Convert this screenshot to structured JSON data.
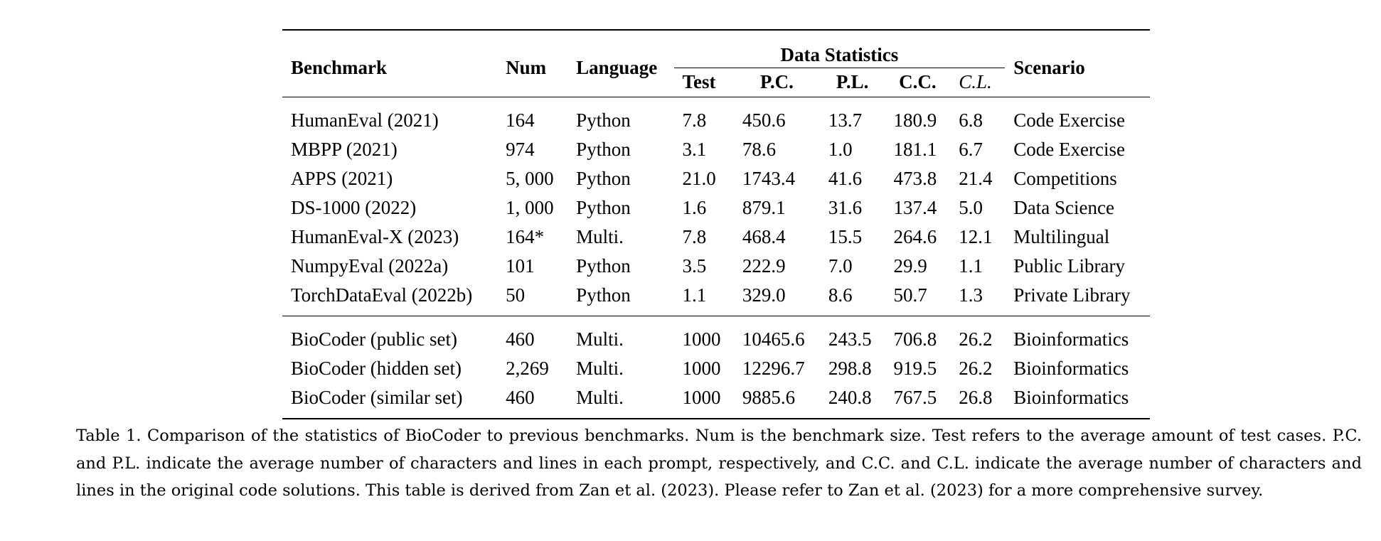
{
  "table": {
    "headers": {
      "benchmark": "Benchmark",
      "num": "Num",
      "language": "Language",
      "data_statistics": "Data Statistics",
      "scenario": "Scenario",
      "sub": {
        "test": "Test",
        "pc": "P.C.",
        "pl": "P.L.",
        "cc": "C.C.",
        "cl": "C.L."
      }
    },
    "previous_rows": [
      {
        "benchmark": "HumanEval (2021)",
        "num": "164",
        "language": "Python",
        "test": "7.8",
        "pc": "450.6",
        "pl": "13.7",
        "cc": "180.9",
        "cl": "6.8",
        "scenario": "Code Exercise"
      },
      {
        "benchmark": "MBPP (2021)",
        "num": "974",
        "language": "Python",
        "test": "3.1",
        "pc": "78.6",
        "pl": "1.0",
        "cc": "181.1",
        "cl": "6.7",
        "scenario": "Code Exercise"
      },
      {
        "benchmark": "APPS (2021)",
        "num": "5, 000",
        "language": "Python",
        "test": "21.0",
        "pc": "1743.4",
        "pl": "41.6",
        "cc": "473.8",
        "cl": "21.4",
        "scenario": "Competitions"
      },
      {
        "benchmark": "DS-1000 (2022)",
        "num": "1, 000",
        "language": "Python",
        "test": "1.6",
        "pc": "879.1",
        "pl": "31.6",
        "cc": "137.4",
        "cl": "5.0",
        "scenario": "Data Science"
      },
      {
        "benchmark": "HumanEval-X (2023)",
        "num": "164*",
        "language": "Multi.",
        "test": "7.8",
        "pc": "468.4",
        "pl": "15.5",
        "cc": "264.6",
        "cl": "12.1",
        "scenario": "Multilingual"
      },
      {
        "benchmark": "NumpyEval (2022a)",
        "num": "101",
        "language": "Python",
        "test": "3.5",
        "pc": "222.9",
        "pl": "7.0",
        "cc": "29.9",
        "cl": "1.1",
        "scenario": "Public Library"
      },
      {
        "benchmark": "TorchDataEval (2022b)",
        "num": "50",
        "language": "Python",
        "test": "1.1",
        "pc": "329.0",
        "pl": "8.6",
        "cc": "50.7",
        "cl": "1.3",
        "scenario": "Private Library"
      }
    ],
    "biocoder_rows": [
      {
        "benchmark": "BioCoder (public set)",
        "num": "460",
        "language": "Multi.",
        "test": "1000",
        "pc": "10465.6",
        "pl": "243.5",
        "cc": "706.8",
        "cl": "26.2",
        "scenario": "Bioinformatics"
      },
      {
        "benchmark": "BioCoder (hidden set)",
        "num": "2,269",
        "language": "Multi.",
        "test": "1000",
        "pc": "12296.7",
        "pl": "298.8",
        "cc": "919.5",
        "cl": "26.2",
        "scenario": "Bioinformatics"
      },
      {
        "benchmark": "BioCoder (similar set)",
        "num": "460",
        "language": "Multi.",
        "test": "1000",
        "pc": "9885.6",
        "pl": "240.8",
        "cc": "767.5",
        "cl": "26.8",
        "scenario": "Bioinformatics"
      }
    ]
  },
  "caption": "Table 1. Comparison of the statistics of BioCoder to previous benchmarks. Num is the benchmark size. Test refers to the average amount of test cases. P.C. and P.L. indicate the average number of characters and lines in each prompt, respectively, and C.C. and C.L. indicate the average number of characters and lines in the original code solutions. This table is derived from Zan et al. (2023). Please refer to Zan et al. (2023) for a more comprehensive survey."
}
